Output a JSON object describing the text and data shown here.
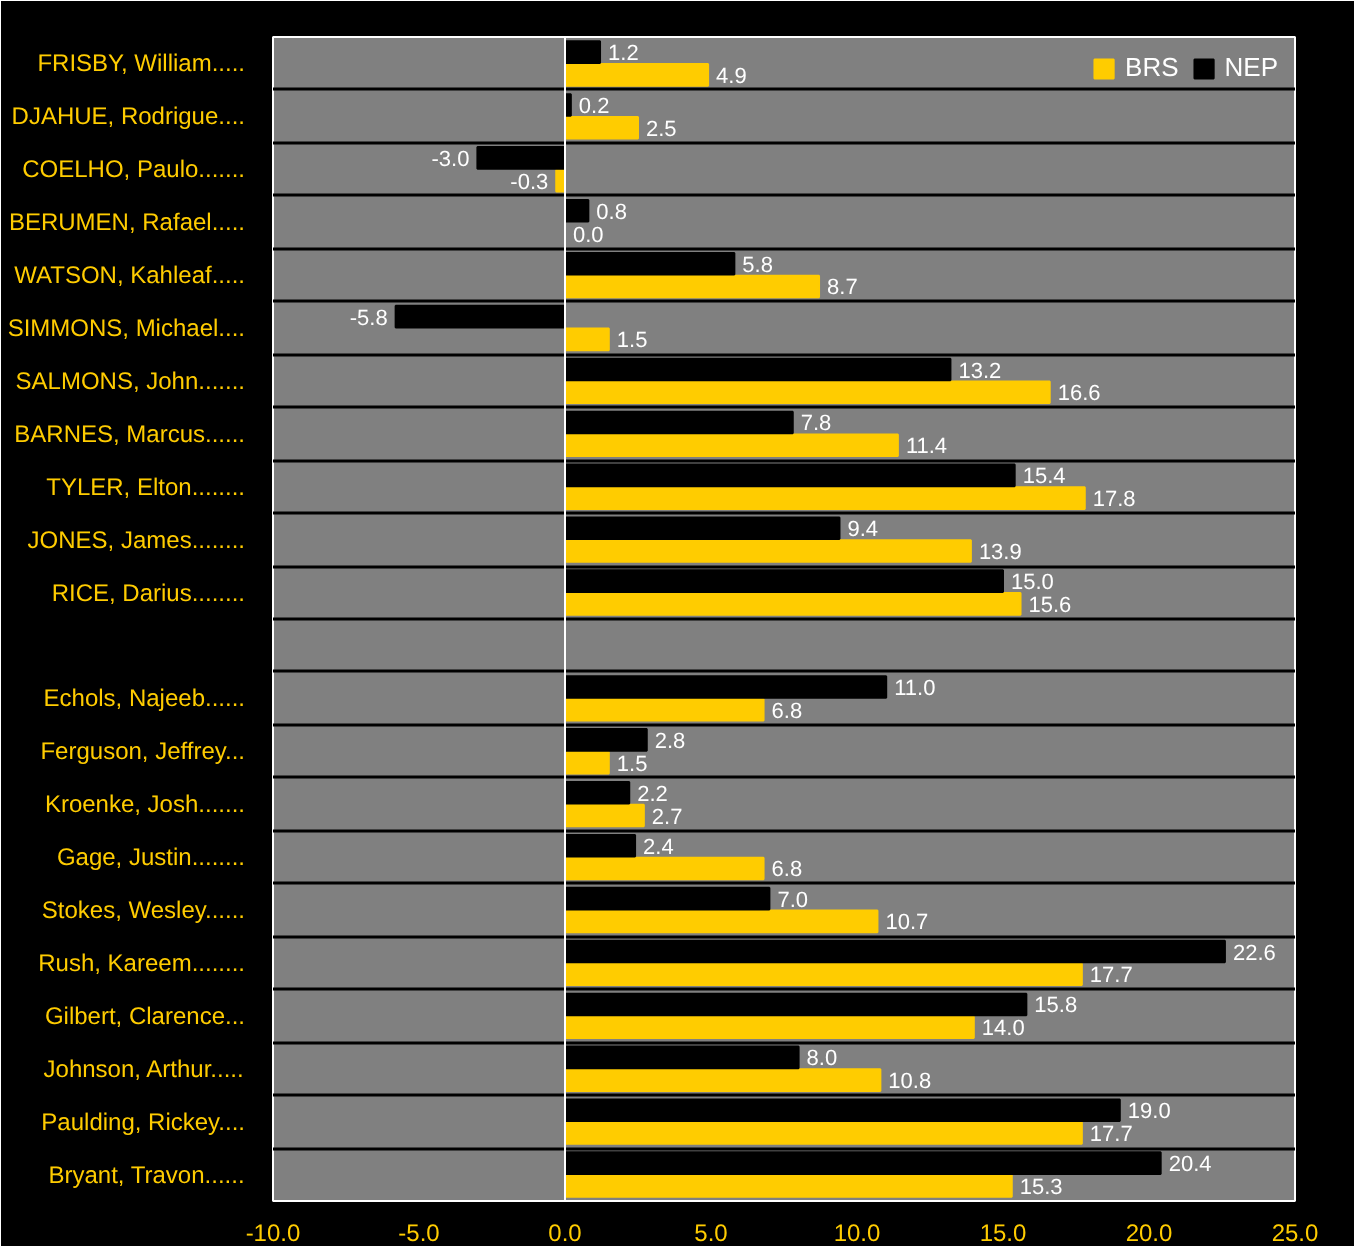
{
  "chart_data": {
    "type": "bar",
    "orientation": "horizontal",
    "categories": [
      "FRISBY, William.....",
      "DJAHUE, Rodrigue....",
      "COELHO, Paulo.......",
      "BERUMEN, Rafael.....",
      "WATSON, Kahleaf.....",
      "SIMMONS, Michael....",
      "SALMONS, John.......",
      "BARNES, Marcus......",
      "TYLER, Elton........",
      "JONES, James........",
      "RICE, Darius........",
      null,
      "Echols, Najeeb......",
      "Ferguson, Jeffrey...",
      "Kroenke, Josh.......",
      "Gage, Justin........",
      "Stokes, Wesley......",
      "Rush, Kareem........",
      "Gilbert, Clarence...",
      "Johnson, Arthur.....",
      "Paulding, Rickey....",
      "Bryant, Travon......"
    ],
    "series": [
      {
        "name": "BRS",
        "color": "#ffcc00",
        "values": [
          4.9,
          2.5,
          -0.3,
          0.0,
          8.7,
          1.5,
          16.6,
          11.4,
          17.8,
          13.9,
          15.6,
          null,
          6.8,
          1.5,
          2.7,
          6.8,
          10.7,
          17.7,
          14.0,
          10.8,
          17.7,
          15.3
        ],
        "value_labels": [
          "4.9",
          "2.5",
          "-0.3",
          "0.0",
          "8.7",
          "1.5",
          "16.6",
          "11.4",
          "17.8",
          "13.9",
          "15.6",
          null,
          "6.8",
          "1.5",
          "2.7",
          "6.8",
          "10.7",
          "17.7",
          "14.0",
          "10.8",
          "17.7",
          "15.3"
        ]
      },
      {
        "name": "NEP",
        "color": "#000000",
        "values": [
          1.2,
          0.2,
          -3.0,
          0.8,
          5.8,
          -5.8,
          13.2,
          7.8,
          15.4,
          9.4,
          15.0,
          null,
          11.0,
          2.8,
          2.2,
          2.4,
          7.0,
          22.6,
          15.8,
          8.0,
          19.0,
          20.4
        ],
        "value_labels": [
          "1.2",
          "0.2",
          "-3.0",
          "0.8",
          "5.8",
          "-5.8",
          "13.2",
          "7.8",
          "15.4",
          "9.4",
          "15.0",
          null,
          "11.0",
          "2.8",
          "2.2",
          "2.4",
          "7.0",
          "22.6",
          "15.8",
          "8.0",
          "19.0",
          "20.4"
        ]
      }
    ],
    "xlim": [
      -10,
      25
    ],
    "xticks": [
      {
        "value": -10,
        "label": "-10.0"
      },
      {
        "value": -5,
        "label": "-5.0"
      },
      {
        "value": 0,
        "label": "0.0"
      },
      {
        "value": 5,
        "label": "5.0"
      },
      {
        "value": 10,
        "label": "10.0"
      },
      {
        "value": 15,
        "label": "15.0"
      },
      {
        "value": 20,
        "label": "20.0"
      },
      {
        "value": 25,
        "label": "25.0"
      }
    ],
    "grid": "y",
    "legend": "top right"
  }
}
